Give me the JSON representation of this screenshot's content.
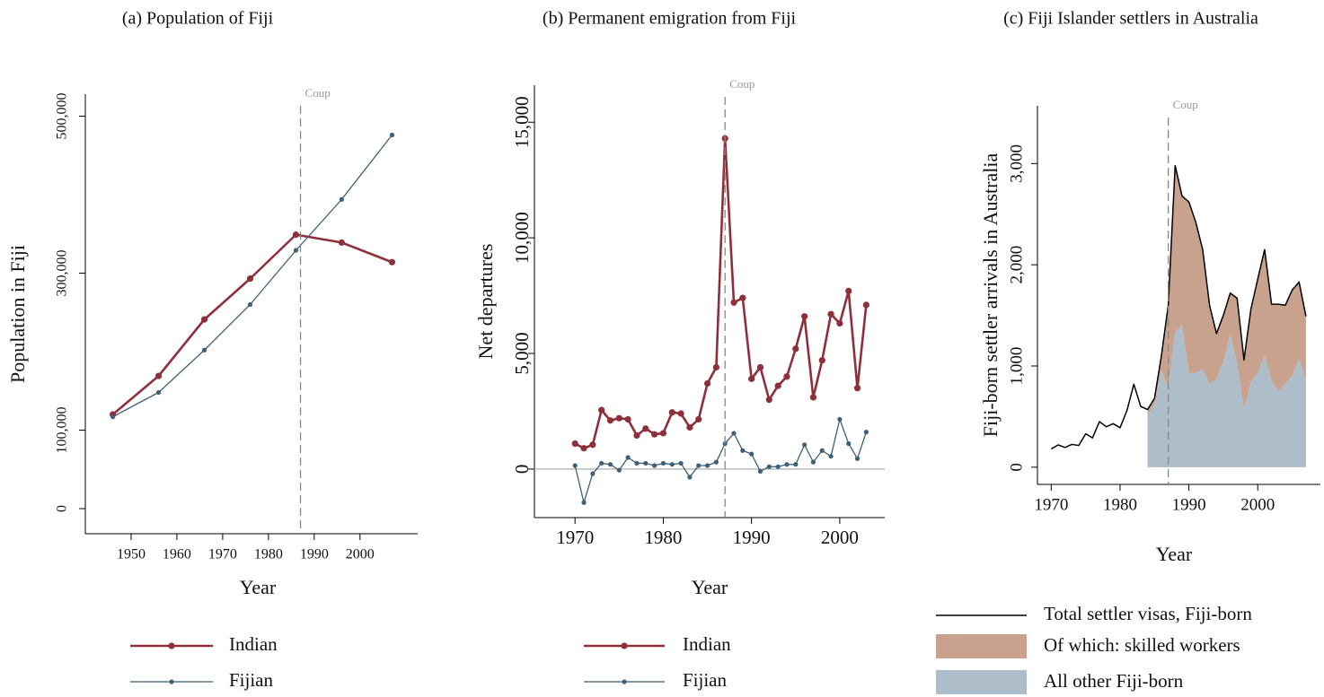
{
  "chart_data": [
    {
      "type": "line",
      "title": "(a) Population of Fiji",
      "xlabel": "Year",
      "ylabel": "Population in Fiji",
      "x": [
        1946,
        1956,
        1966,
        1976,
        1986,
        1996,
        2007
      ],
      "series": [
        {
          "name": "Indian",
          "color": "#8e2f3a",
          "values": [
            120000,
            169000,
            241000,
            293000,
            349000,
            339000,
            314000
          ]
        },
        {
          "name": "Fijian",
          "color": "#3f5f77",
          "values": [
            117000,
            148000,
            202000,
            260000,
            329000,
            394000,
            476000
          ]
        }
      ],
      "xlim": [
        1940,
        2012.6
      ],
      "xticks": [
        1950,
        1960,
        1970,
        1980,
        1990,
        2000
      ],
      "ylim": [
        -32000,
        528000
      ],
      "yticks": [
        0,
        {
          "value": 100000,
          "label": "100,000"
        },
        {
          "value": 300000,
          "label": "300,000"
        },
        {
          "value": 500000,
          "label": "500,000"
        }
      ],
      "vlines": [
        {
          "x": 1987,
          "label": "Coup"
        }
      ],
      "markers": true,
      "legend": "bottom"
    },
    {
      "type": "line",
      "title": "(b) Permanent emigration from Fiji",
      "xlabel": "Year",
      "ylabel": "Net departures",
      "x": [
        1970,
        1971,
        1972,
        1973,
        1974,
        1975,
        1976,
        1977,
        1978,
        1979,
        1980,
        1981,
        1982,
        1983,
        1984,
        1985,
        1986,
        1987,
        1988,
        1989,
        1990,
        1991,
        1992,
        1993,
        1994,
        1995,
        1996,
        1997,
        1998,
        1999,
        2000,
        2001,
        2002,
        2003
      ],
      "series": [
        {
          "name": "Indian",
          "color": "#8e2f3a",
          "values": [
            1100,
            900,
            1050,
            2550,
            2100,
            2200,
            2150,
            1450,
            1750,
            1500,
            1550,
            2450,
            2400,
            1800,
            2150,
            3700,
            4400,
            14300,
            7200,
            7400,
            3900,
            4400,
            3000,
            3600,
            4000,
            5200,
            6600,
            3100,
            4700,
            6700,
            6300,
            7700,
            3500,
            7100
          ]
        },
        {
          "name": "Fijian",
          "color": "#3f5f77",
          "values": [
            150,
            -1450,
            -200,
            250,
            200,
            -50,
            500,
            250,
            250,
            150,
            250,
            200,
            250,
            -350,
            150,
            150,
            300,
            1100,
            1550,
            800,
            650,
            -100,
            100,
            100,
            200,
            200,
            1050,
            300,
            800,
            550,
            2150,
            1100,
            450,
            1600
          ]
        }
      ],
      "xlim": [
        1965.4,
        2005.1
      ],
      "xticks": [
        1970,
        1980,
        1990,
        2000
      ],
      "ylim": [
        -2100,
        16600
      ],
      "yticks": [
        0,
        {
          "value": 5000,
          "label": "5,000"
        },
        {
          "value": 10000,
          "label": "10,000"
        },
        {
          "value": 15000,
          "label": "15,000"
        }
      ],
      "hlines": [
        0
      ],
      "vlines": [
        {
          "x": 1987,
          "label": "Coup"
        }
      ],
      "markers": true,
      "legend": "bottom"
    },
    {
      "type": "area",
      "title": "(c) Fiji Islander settlers in Australia",
      "xlabel": "Year",
      "ylabel": "Fiji-born settler arrivals in Australia",
      "x": [
        1970,
        1971,
        1972,
        1973,
        1974,
        1975,
        1976,
        1977,
        1978,
        1979,
        1980,
        1981,
        1982,
        1983,
        1984,
        1985,
        1986,
        1987,
        1988,
        1989,
        1990,
        1991,
        1992,
        1993,
        1994,
        1995,
        1996,
        1997,
        1998,
        1999,
        2000,
        2001,
        2002,
        2003,
        2004,
        2005,
        2006,
        2007
      ],
      "series": [
        {
          "name": "Total settler visas, Fiji-born",
          "color": "#000000",
          "kind": "line",
          "values": [
            180,
            220,
            195,
            225,
            215,
            330,
            290,
            450,
            400,
            430,
            390,
            560,
            820,
            600,
            570,
            680,
            1100,
            1600,
            2980,
            2680,
            2620,
            2420,
            2150,
            1600,
            1320,
            1500,
            1720,
            1670,
            1060,
            1560,
            1860,
            2150,
            1610,
            1610,
            1600,
            1750,
            1830,
            1490
          ]
        },
        {
          "name": "Of which: skilled workers",
          "color": "#c9a28d",
          "kind": "area",
          "values": [
            null,
            null,
            null,
            null,
            null,
            null,
            null,
            null,
            null,
            null,
            null,
            null,
            null,
            null,
            50,
            60,
            140,
            820,
            1650,
            1270,
            1690,
            1490,
            1180,
            780,
            450,
            460,
            400,
            640,
            490,
            720,
            930,
            1040,
            750,
            860,
            770,
            850,
            760,
            630
          ]
        },
        {
          "name": "All other Fiji-born",
          "color": "#aebdca",
          "kind": "area",
          "values": [
            null,
            null,
            null,
            null,
            null,
            null,
            null,
            null,
            null,
            null,
            null,
            null,
            null,
            null,
            520,
            620,
            960,
            780,
            1330,
            1410,
            930,
            930,
            970,
            820,
            870,
            1040,
            1320,
            1030,
            570,
            840,
            930,
            1110,
            860,
            750,
            830,
            900,
            1070,
            860
          ]
        }
      ],
      "xlim": [
        1968,
        2009.1
      ],
      "xticks": [
        1970,
        1980,
        1990,
        2000
      ],
      "ylim": [
        -170,
        3570
      ],
      "yticks": [
        0,
        {
          "value": 1000,
          "label": "1,000"
        },
        {
          "value": 2000,
          "label": "2,000"
        },
        {
          "value": 3000,
          "label": "3,000"
        }
      ],
      "vlines": [
        {
          "x": 1987,
          "label": "Coup"
        }
      ],
      "markers": false,
      "legend": "bottom"
    }
  ]
}
